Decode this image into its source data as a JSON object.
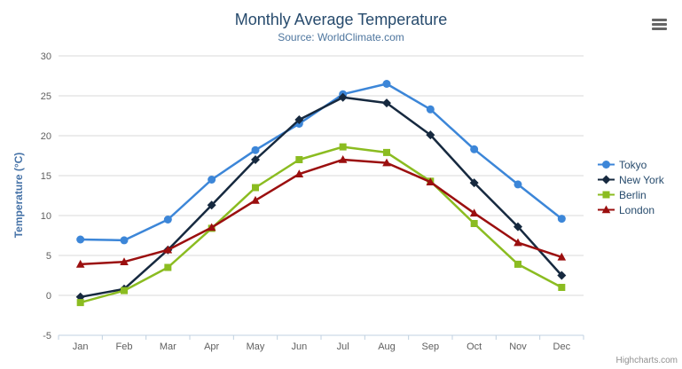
{
  "header": {
    "title": "Monthly Average Temperature",
    "subtitle": "Source: WorldClimate.com"
  },
  "icons": {
    "context_menu": "hamburger-icon"
  },
  "chart_data": {
    "type": "line",
    "title": "Monthly Average Temperature",
    "subtitle": "Source: WorldClimate.com",
    "categories": [
      "Jan",
      "Feb",
      "Mar",
      "Apr",
      "May",
      "Jun",
      "Jul",
      "Aug",
      "Sep",
      "Oct",
      "Nov",
      "Dec"
    ],
    "series": [
      {
        "name": "Tokyo",
        "marker": "circle",
        "color": "#3C86D8",
        "values": [
          7.0,
          6.9,
          9.5,
          14.5,
          18.2,
          21.5,
          25.2,
          26.5,
          23.3,
          18.3,
          13.9,
          9.6
        ]
      },
      {
        "name": "New York",
        "marker": "diamond",
        "color": "#16293F",
        "values": [
          -0.2,
          0.8,
          5.7,
          11.3,
          17.0,
          22.0,
          24.8,
          24.1,
          20.1,
          14.1,
          8.6,
          2.5
        ]
      },
      {
        "name": "Berlin",
        "marker": "square",
        "color": "#8BBC21",
        "values": [
          -0.9,
          0.6,
          3.5,
          8.4,
          13.5,
          17.0,
          18.6,
          17.9,
          14.3,
          9.0,
          3.9,
          1.0
        ]
      },
      {
        "name": "London",
        "marker": "triangle",
        "color": "#9B0F0F",
        "values": [
          3.9,
          4.2,
          5.7,
          8.5,
          11.9,
          15.2,
          17.0,
          16.6,
          14.2,
          10.3,
          6.6,
          4.8
        ]
      }
    ],
    "xlabel": "",
    "ylabel": "Temperature (°C)",
    "ylim": [
      -5,
      30
    ],
    "yticks": [
      -5,
      0,
      5,
      10,
      15,
      20,
      25,
      30
    ],
    "grid": true,
    "legend_position": "right"
  },
  "credits": {
    "label": "Highcharts.com"
  },
  "colors": {
    "title": "#274b6d",
    "subtitle": "#4d759e",
    "axis_title": "#4572a7",
    "tick_label": "#606060",
    "gridline": "#d8d8d8",
    "axis_line": "#c0d0e0",
    "legend_text": "#274b6d",
    "credits": "#909090",
    "menu_icon": "#666666",
    "background": "#ffffff"
  }
}
